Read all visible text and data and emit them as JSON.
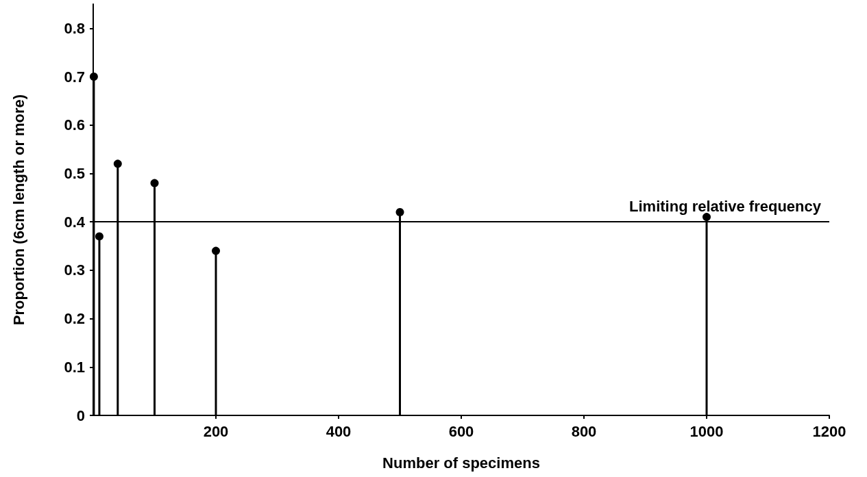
{
  "chart_data": {
    "type": "lollipop",
    "xlabel": "Number of specimens",
    "ylabel": "Proportion (6cm length or more)",
    "x": [
      1,
      10,
      40,
      100,
      200,
      500,
      1000
    ],
    "values": [
      0.7,
      0.37,
      0.52,
      0.48,
      0.34,
      0.42,
      0.41
    ],
    "color": "#000000",
    "marker": "circle",
    "grid": false,
    "xlim": [
      0,
      1200
    ],
    "xticks": [
      200,
      400,
      600,
      800,
      1000,
      1200
    ],
    "ylim": [
      0,
      0.85
    ],
    "yticks": [
      0,
      0.1,
      0.2,
      0.3,
      0.4,
      0.5,
      0.6,
      0.7,
      0.8
    ],
    "ref_lines": [
      {
        "axis": "y",
        "value": 0.4,
        "label": "Limiting relative frequency",
        "color": "#000000"
      }
    ]
  }
}
